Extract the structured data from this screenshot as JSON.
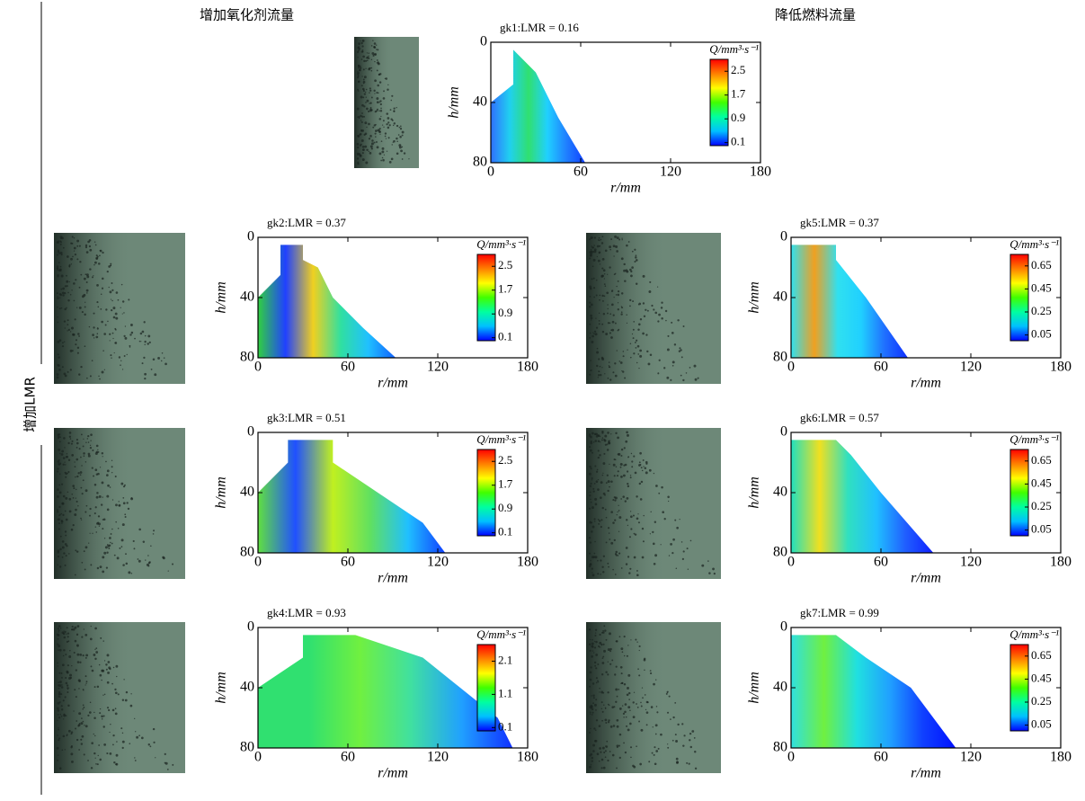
{
  "headers": {
    "left": "增加氧化剂流量",
    "right": "降低燃料流量",
    "side": "增加LMR"
  },
  "colormap": [
    "#0000ff",
    "#00c0ff",
    "#00ffa0",
    "#40ff00",
    "#ffff00",
    "#ff8000",
    "#ff0000"
  ],
  "chart_data": [
    {
      "type": "contour",
      "title": "gk1:LMR = 0.16",
      "xlabel": "r/mm",
      "ylabel": "h/mm",
      "xlim": [
        0,
        180
      ],
      "ylim": [
        80,
        0
      ],
      "xticks": [
        0,
        60,
        120,
        180
      ],
      "yticks": [
        0,
        40,
        80
      ],
      "boundary": {
        "r": [
          0,
          0,
          15,
          15,
          30,
          45,
          63
        ],
        "h": [
          80,
          40,
          28,
          5,
          20,
          50,
          80
        ]
      },
      "fill_colors": [
        "#3070ff",
        "#20d0f0",
        "#30e070",
        "#20d0ff",
        "#2080ff",
        "#1040ff"
      ],
      "colorbar": {
        "label": "Q/mm³·s⁻¹",
        "lim": [
          0,
          2.9
        ],
        "ticks": [
          0.1,
          0.9,
          1.7,
          2.5
        ]
      }
    },
    {
      "type": "contour",
      "title": "gk2:LMR = 0.37",
      "xlabel": "r/mm",
      "ylabel": "h/mm",
      "xlim": [
        0,
        180
      ],
      "ylim": [
        80,
        0
      ],
      "xticks": [
        0,
        60,
        120,
        180
      ],
      "yticks": [
        0,
        40,
        80
      ],
      "boundary": {
        "r": [
          0,
          0,
          15,
          15,
          30,
          30,
          40,
          50,
          70,
          92
        ],
        "h": [
          80,
          40,
          25,
          5,
          5,
          15,
          20,
          40,
          60,
          80
        ]
      },
      "fill_colors": [
        "#30d040",
        "#2040ff",
        "#f0d020",
        "#30e0a0",
        "#20c0ff",
        "#1060ff"
      ],
      "colorbar": {
        "label": "Q/mm³·s⁻¹",
        "lim": [
          0,
          2.9
        ],
        "ticks": [
          0.1,
          0.9,
          1.7,
          2.5
        ]
      }
    },
    {
      "type": "contour",
      "title": "gk3:LMR = 0.51",
      "xlabel": "r/mm",
      "ylabel": "h/mm",
      "xlim": [
        0,
        180
      ],
      "ylim": [
        80,
        0
      ],
      "xticks": [
        0,
        60,
        120,
        180
      ],
      "yticks": [
        0,
        40,
        80
      ],
      "boundary": {
        "r": [
          0,
          0,
          20,
          20,
          50,
          50,
          80,
          110,
          125
        ],
        "h": [
          80,
          40,
          20,
          5,
          5,
          20,
          40,
          60,
          80
        ]
      },
      "fill_colors": [
        "#60e040",
        "#2050ff",
        "#c0f020",
        "#60e060",
        "#20c0ff",
        "#1040ff"
      ],
      "colorbar": {
        "label": "Q/mm³·s⁻¹",
        "lim": [
          0,
          2.9
        ],
        "ticks": [
          0.1,
          0.9,
          1.7,
          2.5
        ]
      }
    },
    {
      "type": "contour",
      "title": "gk4:LMR = 0.93",
      "xlabel": "r/mm",
      "ylabel": "h/mm",
      "xlim": [
        0,
        180
      ],
      "ylim": [
        80,
        0
      ],
      "xticks": [
        0,
        60,
        120,
        180
      ],
      "yticks": [
        0,
        40,
        80
      ],
      "boundary": {
        "r": [
          0,
          0,
          30,
          30,
          65,
          110,
          160,
          170
        ],
        "h": [
          80,
          40,
          20,
          5,
          5,
          20,
          60,
          80
        ]
      },
      "fill_colors": [
        "#30e070",
        "#30e070",
        "#70f040",
        "#40e0a0",
        "#20a0ff",
        "#1030ff"
      ],
      "colorbar": {
        "label": "Q/mm³·s⁻¹",
        "lim": [
          0,
          2.6
        ],
        "ticks": [
          0.1,
          1.1,
          2.1
        ]
      }
    },
    {
      "type": "contour",
      "title": "gk5:LMR = 0.37",
      "xlabel": "r/mm",
      "ylabel": "h/mm",
      "xlim": [
        0,
        180
      ],
      "ylim": [
        80,
        0
      ],
      "xticks": [
        0,
        60,
        120,
        180
      ],
      "yticks": [
        0,
        40,
        80
      ],
      "boundary": {
        "r": [
          0,
          0,
          30,
          30,
          50,
          78
        ],
        "h": [
          80,
          5,
          5,
          15,
          40,
          80
        ]
      },
      "fill_colors": [
        "#30e0f0",
        "#f0a020",
        "#30e0f0",
        "#20d0ff",
        "#2070ff",
        "#1030ff"
      ],
      "colorbar": {
        "label": "Q/mm³·s⁻¹",
        "lim": [
          0,
          0.75
        ],
        "ticks": [
          0.05,
          0.25,
          0.45,
          0.65
        ]
      }
    },
    {
      "type": "contour",
      "title": "gk6:LMR = 0.57",
      "xlabel": "r/mm",
      "ylabel": "h/mm",
      "xlim": [
        0,
        180
      ],
      "ylim": [
        80,
        0
      ],
      "xticks": [
        0,
        60,
        120,
        180
      ],
      "yticks": [
        0,
        40,
        80
      ],
      "boundary": {
        "r": [
          0,
          0,
          30,
          40,
          60,
          95
        ],
        "h": [
          80,
          5,
          5,
          15,
          40,
          80
        ]
      },
      "fill_colors": [
        "#20e0c0",
        "#f0e020",
        "#30e0c0",
        "#20c0ff",
        "#2060ff",
        "#1020ff"
      ],
      "colorbar": {
        "label": "Q/mm³·s⁻¹",
        "lim": [
          0,
          0.75
        ],
        "ticks": [
          0.05,
          0.25,
          0.45,
          0.65
        ]
      }
    },
    {
      "type": "contour",
      "title": "gk7:LMR = 0.99",
      "xlabel": "r/mm",
      "ylabel": "h/mm",
      "xlim": [
        0,
        180
      ],
      "ylim": [
        80,
        0
      ],
      "xticks": [
        0,
        60,
        120,
        180
      ],
      "yticks": [
        0,
        40,
        80
      ],
      "boundary": {
        "r": [
          0,
          0,
          30,
          50,
          80,
          110
        ],
        "h": [
          80,
          5,
          5,
          20,
          40,
          80
        ]
      },
      "fill_colors": [
        "#30e0e0",
        "#70f040",
        "#20e0e0",
        "#20a0ff",
        "#1040ff",
        "#0010ff"
      ],
      "colorbar": {
        "label": "Q/mm³·s⁻¹",
        "lim": [
          0,
          0.75
        ],
        "ticks": [
          0.05,
          0.25,
          0.45,
          0.65
        ]
      }
    }
  ]
}
